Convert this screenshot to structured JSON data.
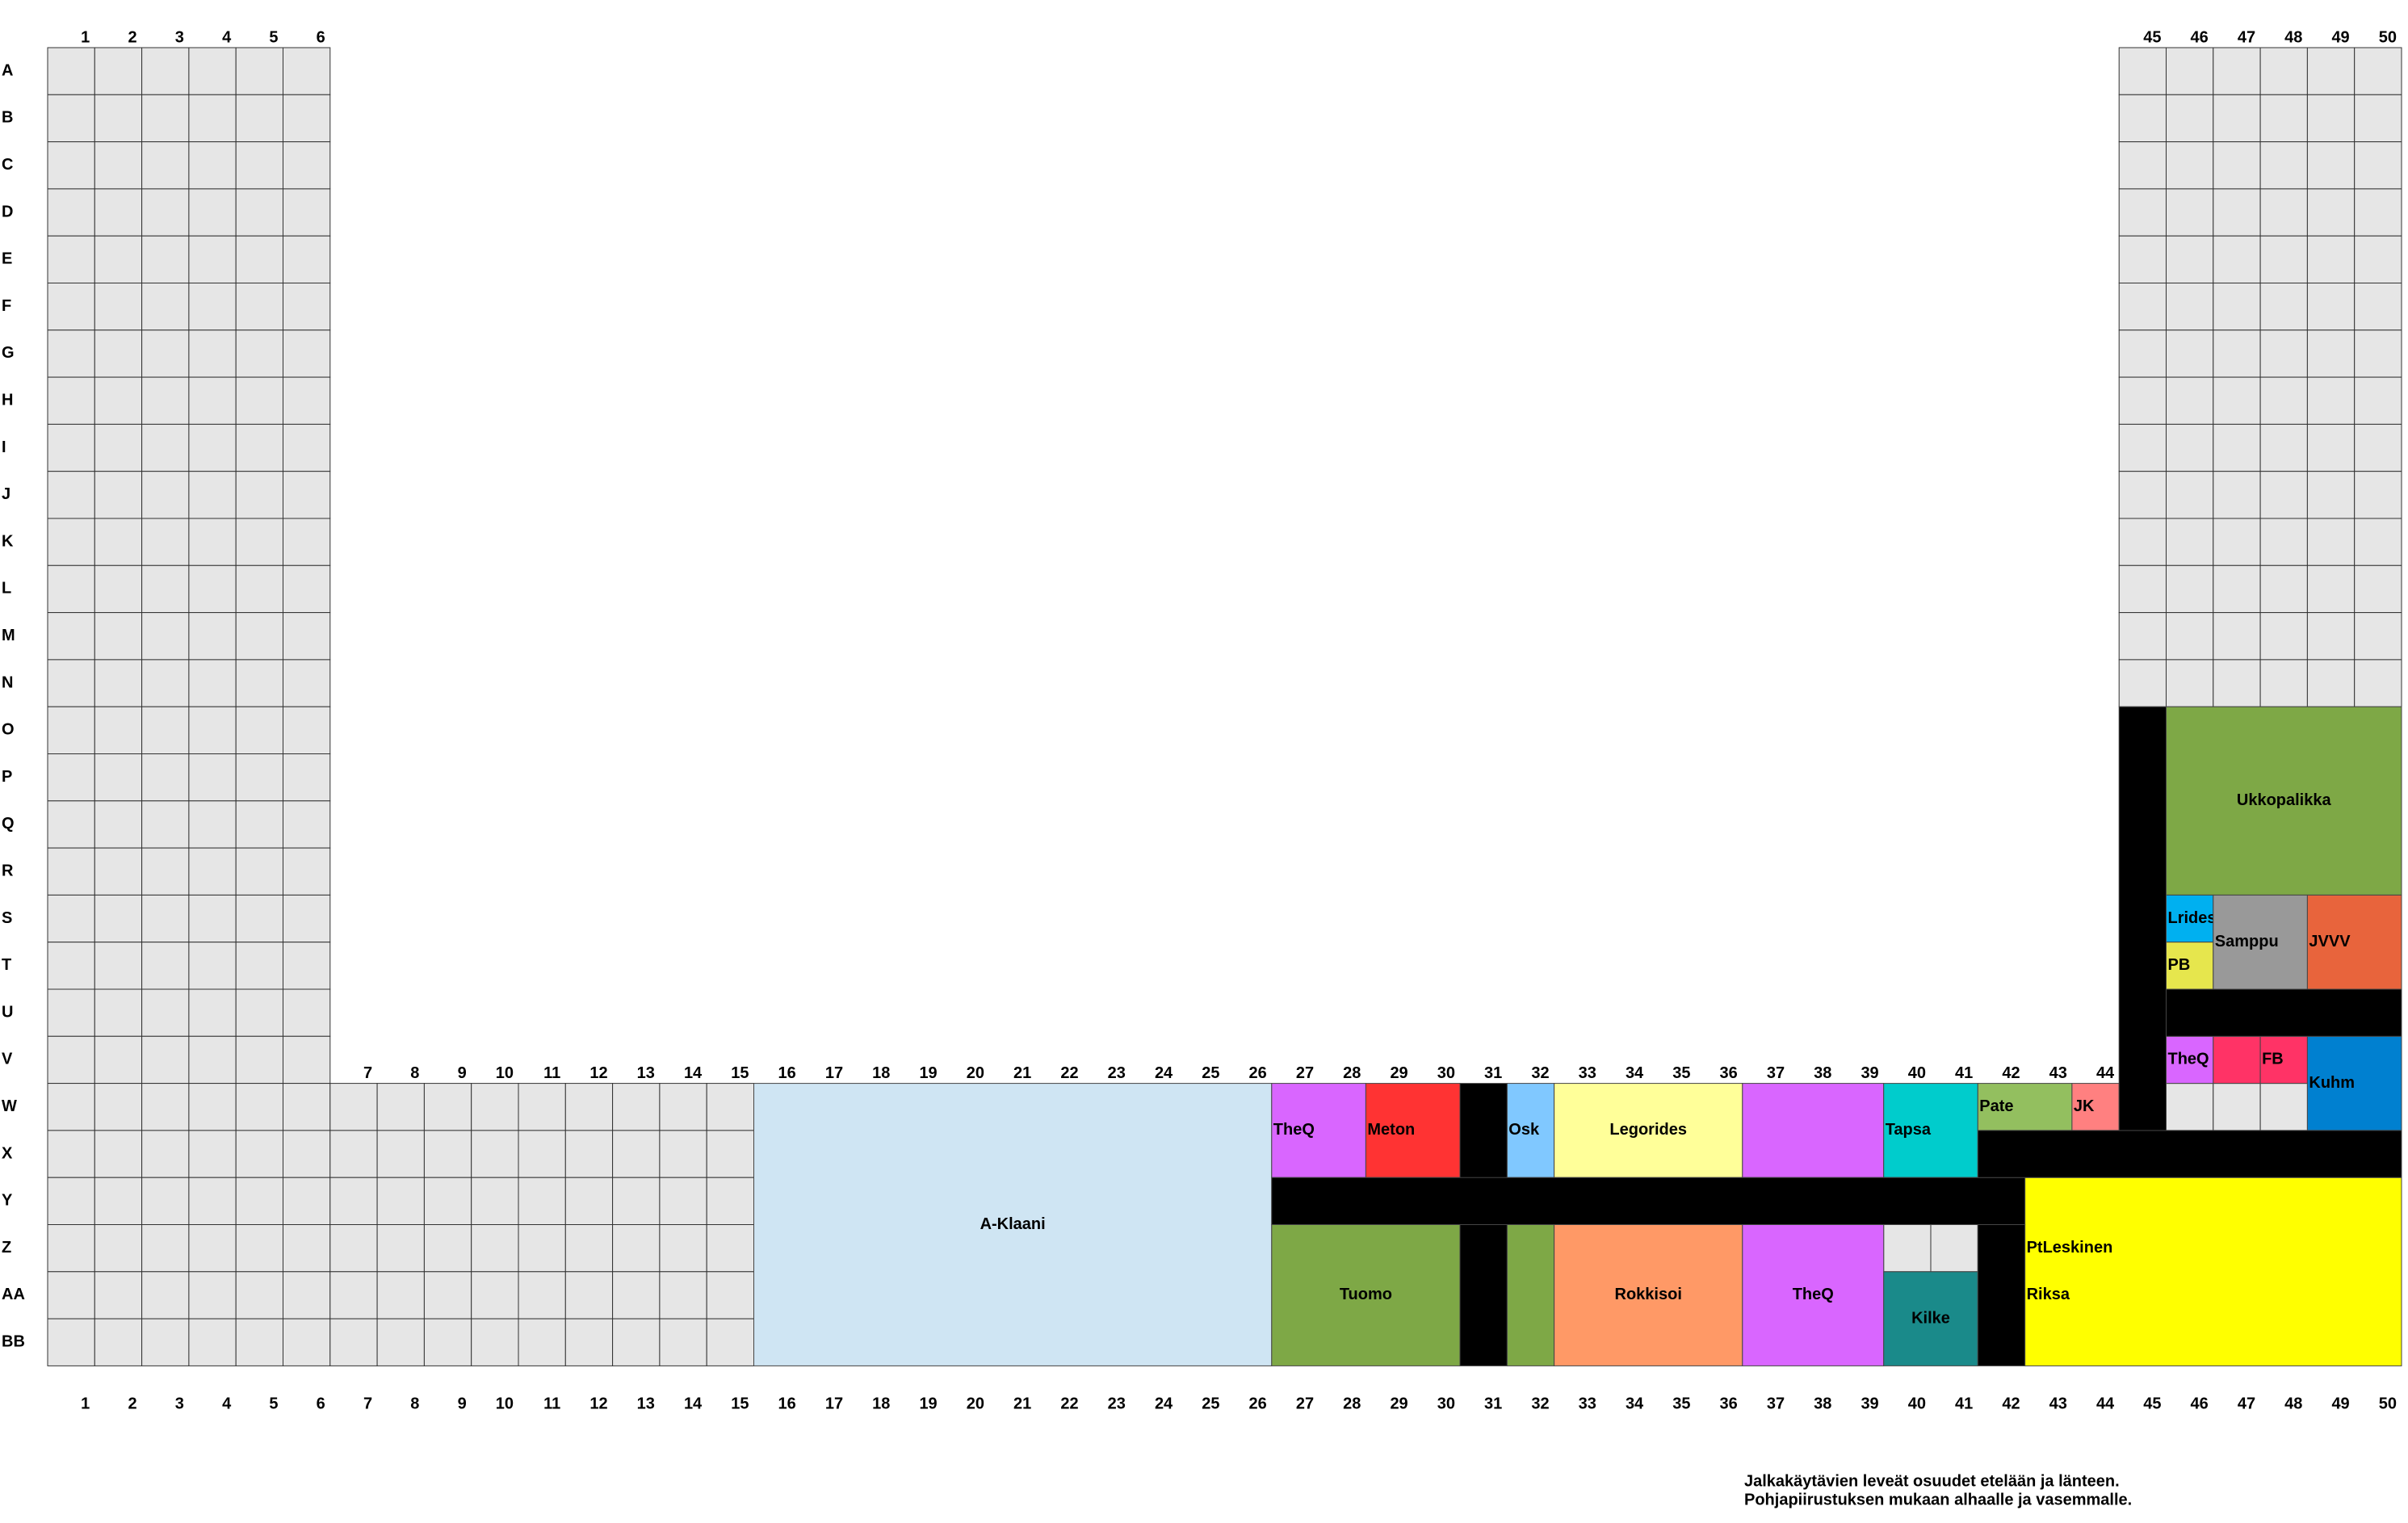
{
  "columns": [
    1,
    2,
    3,
    4,
    5,
    6,
    7,
    8,
    9,
    10,
    11,
    12,
    13,
    14,
    15,
    16,
    17,
    18,
    19,
    20,
    21,
    22,
    23,
    24,
    25,
    26,
    27,
    28,
    29,
    30,
    31,
    32,
    33,
    34,
    35,
    36,
    37,
    38,
    39,
    40,
    41,
    42,
    43,
    44,
    45,
    46,
    47,
    48,
    49,
    50
  ],
  "rows": [
    "A",
    "B",
    "C",
    "D",
    "E",
    "F",
    "G",
    "H",
    "I",
    "J",
    "K",
    "L",
    "M",
    "N",
    "O",
    "P",
    "Q",
    "R",
    "S",
    "T",
    "U",
    "V",
    "W",
    "X",
    "Y",
    "Z",
    "AA",
    "BB"
  ],
  "seat_areas": [
    {
      "cols": [
        1,
        6
      ],
      "rows": [
        "A",
        "BB"
      ]
    },
    {
      "cols": [
        45,
        50
      ],
      "rows": [
        "A",
        "N"
      ]
    },
    {
      "cols": [
        7,
        15
      ],
      "rows": [
        "W",
        "BB"
      ]
    },
    {
      "cols": [
        40,
        41
      ],
      "rows": [
        "Z",
        "Z"
      ]
    },
    {
      "cols": [
        46,
        48
      ],
      "rows": [
        "W",
        "W"
      ]
    }
  ],
  "blocks": [
    {
      "labels": [
        "A-Klaani"
      ],
      "cols": [
        16,
        26
      ],
      "rows": [
        "W",
        "BB"
      ],
      "color": "#cfe5f3",
      "align": "center"
    },
    {
      "labels": [
        "TheQ"
      ],
      "cols": [
        27,
        28
      ],
      "rows": [
        "W",
        "X"
      ],
      "color": "#d966ff",
      "align": "left"
    },
    {
      "labels": [
        "Meton"
      ],
      "cols": [
        29,
        30
      ],
      "rows": [
        "W",
        "X"
      ],
      "color": "#ff3333",
      "align": "left"
    },
    {
      "labels": [
        "Osk"
      ],
      "cols": [
        32,
        32
      ],
      "rows": [
        "W",
        "X"
      ],
      "color": "#80c8ff",
      "align": "left"
    },
    {
      "labels": [
        "Legorides"
      ],
      "cols": [
        33,
        36
      ],
      "rows": [
        "W",
        "X"
      ],
      "color": "#ffff99",
      "align": "center"
    },
    {
      "cols": [
        37,
        39
      ],
      "rows": [
        "W",
        "X"
      ],
      "color": "#d966ff"
    },
    {
      "labels": [
        "Tapsa"
      ],
      "cols": [
        40,
        41
      ],
      "rows": [
        "W",
        "X"
      ],
      "color": "#00cccc",
      "align": "left"
    },
    {
      "labels": [
        "Pate"
      ],
      "cols": [
        42,
        43
      ],
      "rows": [
        "W",
        "W"
      ],
      "color": "#93bf5f",
      "align": "left"
    },
    {
      "labels": [
        "JK"
      ],
      "cols": [
        44,
        44
      ],
      "rows": [
        "W",
        "W"
      ],
      "color": "#ff8080",
      "align": "left"
    },
    {
      "labels": [
        "Tuomo"
      ],
      "cols": [
        27,
        30
      ],
      "rows": [
        "Z",
        "BB"
      ],
      "color": "#7ea846",
      "align": "center"
    },
    {
      "cols": [
        32,
        32
      ],
      "rows": [
        "Z",
        "BB"
      ],
      "color": "#7ea846"
    },
    {
      "labels": [
        "Rokkisoi"
      ],
      "cols": [
        33,
        36
      ],
      "rows": [
        "Z",
        "BB"
      ],
      "color": "#ff9966",
      "align": "center"
    },
    {
      "labels": [
        "TheQ"
      ],
      "cols": [
        37,
        39
      ],
      "rows": [
        "Z",
        "BB"
      ],
      "color": "#d966ff",
      "align": "center"
    },
    {
      "labels": [
        "Kilke"
      ],
      "cols": [
        40,
        41
      ],
      "rows": [
        "AA",
        "BB"
      ],
      "color": "#1a8a8a",
      "align": "center"
    },
    {
      "labels": [
        "PtLeskinen",
        "Riksa"
      ],
      "cols": [
        43,
        50
      ],
      "rows": [
        "Y",
        "BB"
      ],
      "color": "#ffff00",
      "align": "left"
    },
    {
      "labels": [
        "Ukkopalikka"
      ],
      "cols": [
        46,
        50
      ],
      "rows": [
        "O",
        "R"
      ],
      "color": "#7ea846",
      "align": "center"
    },
    {
      "labels": [
        "Lrides"
      ],
      "cols": [
        46,
        46
      ],
      "rows": [
        "S",
        "S"
      ],
      "color": "#00b0f0",
      "align": "left"
    },
    {
      "labels": [
        "PB"
      ],
      "cols": [
        46,
        46
      ],
      "rows": [
        "T",
        "T"
      ],
      "color": "#e6e64d",
      "align": "left"
    },
    {
      "labels": [
        "Samppu"
      ],
      "cols": [
        47,
        48
      ],
      "rows": [
        "S",
        "T"
      ],
      "color": "#999999",
      "align": "left"
    },
    {
      "labels": [
        "JVVV"
      ],
      "cols": [
        49,
        50
      ],
      "rows": [
        "S",
        "T"
      ],
      "color": "#e8643c",
      "align": "left"
    },
    {
      "labels": [
        "TheQ"
      ],
      "cols": [
        46,
        46
      ],
      "rows": [
        "V",
        "V"
      ],
      "color": "#d966ff",
      "align": "left"
    },
    {
      "cols": [
        47,
        47
      ],
      "rows": [
        "V",
        "V"
      ],
      "color": "#ff3366"
    },
    {
      "labels": [
        "FB"
      ],
      "cols": [
        48,
        48
      ],
      "rows": [
        "V",
        "V"
      ],
      "color": "#ff3366",
      "align": "left"
    },
    {
      "labels": [
        "Kuhm"
      ],
      "cols": [
        49,
        50
      ],
      "rows": [
        "V",
        "W"
      ],
      "color": "#0080d0",
      "align": "left"
    },
    {
      "cols": [
        31,
        31
      ],
      "rows": [
        "W",
        "BB"
      ],
      "color": "#000000"
    },
    {
      "cols": [
        27,
        42
      ],
      "rows": [
        "Y",
        "Y"
      ],
      "color": "#000000"
    },
    {
      "cols": [
        42,
        42
      ],
      "rows": [
        "Z",
        "BB"
      ],
      "color": "#000000"
    },
    {
      "cols": [
        42,
        50
      ],
      "rows": [
        "X",
        "X"
      ],
      "color": "#000000"
    },
    {
      "cols": [
        45,
        45
      ],
      "rows": [
        "O",
        "W"
      ],
      "color": "#000000"
    },
    {
      "cols": [
        46,
        50
      ],
      "rows": [
        "U",
        "U"
      ],
      "color": "#000000"
    }
  ],
  "note": [
    "Jalkakäytävien leveät osuudet etelään ja länteen.",
    "Pohjapiirustuksen mukaan alhaalle ja vasemmalle."
  ]
}
